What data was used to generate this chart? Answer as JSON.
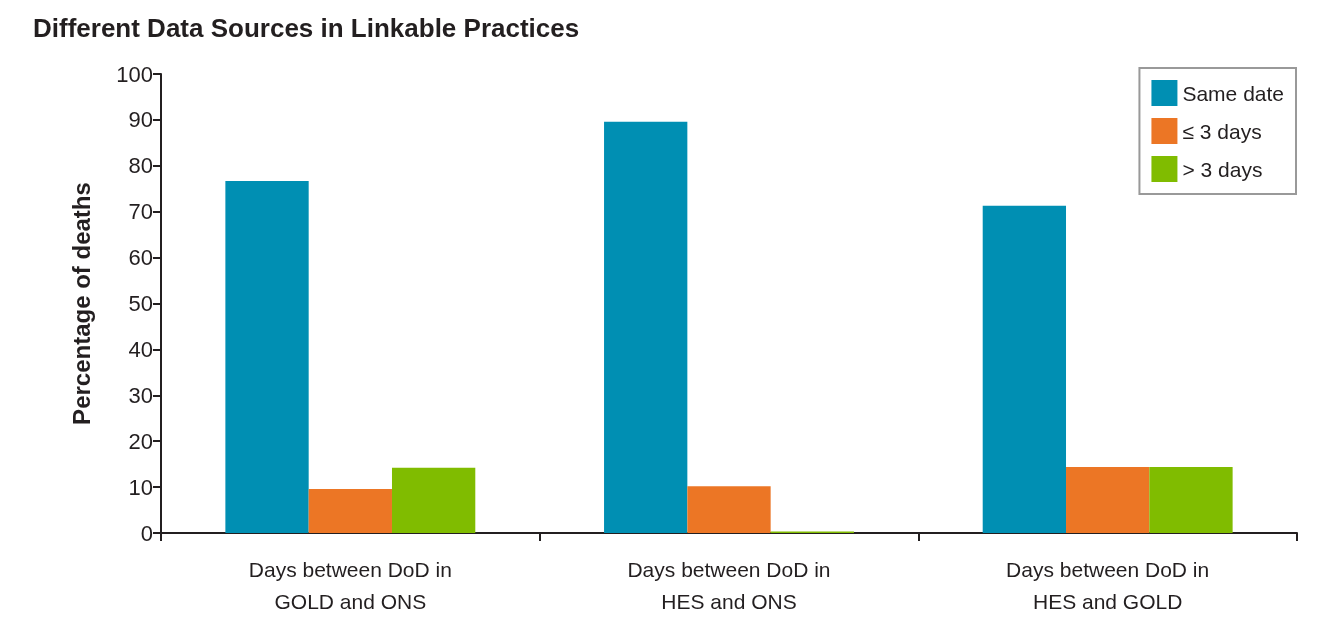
{
  "chart_data": {
    "type": "bar",
    "title": "Different Data Sources in Linkable Practices",
    "ylabel": "Percentage of deaths",
    "categories": [
      "Days between DoD in\nGOLD and ONS",
      "Days between DoD in\nHES and ONS",
      "Days between DoD in\nHES and GOLD"
    ],
    "series": [
      {
        "name": "Same date",
        "color": "#008fb3",
        "values": [
          76.7,
          89.6,
          71.3
        ]
      },
      {
        "name": "≤ 3 days",
        "color": "#ec7625",
        "values": [
          9.6,
          10.2,
          14.4
        ]
      },
      {
        "name": "> 3 days",
        "color": "#80bc00",
        "values": [
          14.2,
          0.3,
          14.4
        ]
      }
    ],
    "ylim": [
      0,
      100
    ],
    "yticks": [
      0,
      10,
      20,
      30,
      40,
      50,
      60,
      70,
      80,
      90,
      100
    ],
    "grid": false,
    "legend": "top right"
  }
}
